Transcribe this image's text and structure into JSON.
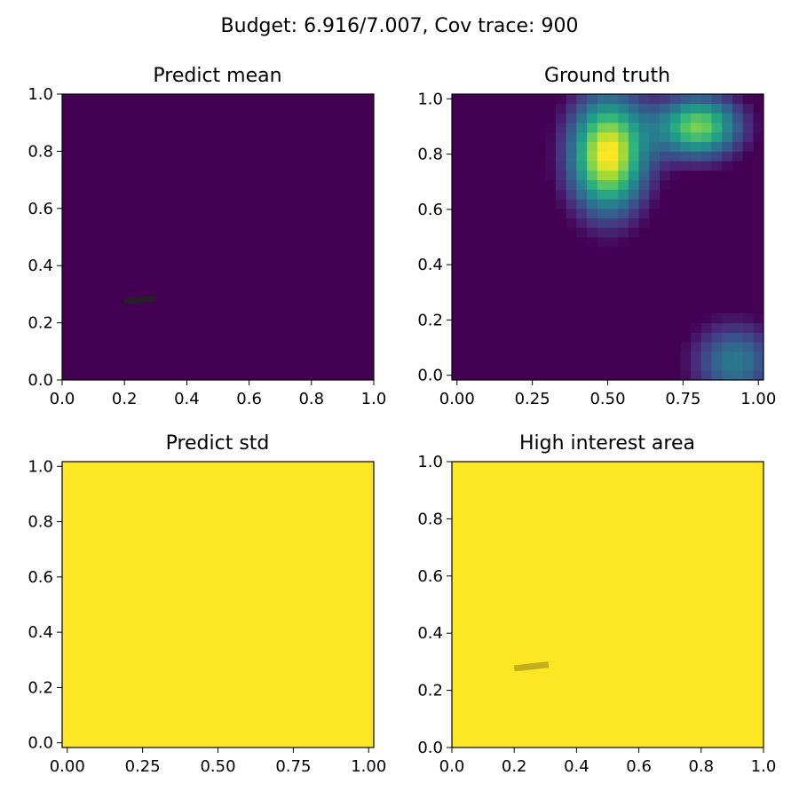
{
  "figure": {
    "suptitle": "Budget: 6.916/7.007,  Cov trace: 900"
  },
  "panels": [
    {
      "title": "Predict mean",
      "fill": "#440154",
      "xticks": [
        "0.0",
        "0.2",
        "0.4",
        "0.6",
        "0.8",
        "1.0"
      ],
      "yticks": [
        "0.0",
        "0.2",
        "0.4",
        "0.6",
        "0.8",
        "1.0"
      ]
    },
    {
      "title": "Ground truth",
      "fill": "#440154",
      "xticks": [
        "0.00",
        "0.25",
        "0.50",
        "0.75",
        "1.00"
      ],
      "yticks": [
        "0.0",
        "0.2",
        "0.4",
        "0.6",
        "0.8",
        "1.0"
      ]
    },
    {
      "title": "Predict std",
      "fill": "#fde725",
      "xticks": [
        "0.00",
        "0.25",
        "0.50",
        "0.75",
        "1.00"
      ],
      "yticks": [
        "0.0",
        "0.2",
        "0.4",
        "0.6",
        "0.8",
        "1.0"
      ]
    },
    {
      "title": "High interest area",
      "fill": "#fde725",
      "xticks": [
        "0.0",
        "0.2",
        "0.4",
        "0.6",
        "0.8",
        "1.0"
      ],
      "yticks": [
        "0.0",
        "0.2",
        "0.4",
        "0.6",
        "0.8",
        "1.0"
      ]
    }
  ],
  "chart_data": [
    {
      "type": "heatmap",
      "title": "Predict mean",
      "xlim": [
        0,
        1
      ],
      "ylim": [
        0,
        1
      ],
      "colormap": "viridis",
      "uniform_value": "min",
      "path": {
        "x": [
          0.2,
          0.3
        ],
        "y": [
          0.275,
          0.285
        ],
        "color": "#222222"
      }
    },
    {
      "type": "heatmap",
      "title": "Ground truth",
      "xlim": [
        -0.017,
        1.017
      ],
      "ylim": [
        -0.017,
        1.017
      ],
      "colormap": "viridis",
      "grid_size": 30,
      "blobs": [
        {
          "cx": 0.5,
          "cy": 0.8,
          "sx": 0.09,
          "sy": 0.15,
          "amp": 1.0
        },
        {
          "cx": 0.8,
          "cy": 0.9,
          "sx": 0.1,
          "sy": 0.08,
          "amp": 0.8
        },
        {
          "cx": 0.92,
          "cy": 0.05,
          "sx": 0.1,
          "sy": 0.1,
          "amp": 0.45
        }
      ]
    },
    {
      "type": "heatmap",
      "title": "Predict std",
      "xlim": [
        -0.017,
        1.017
      ],
      "ylim": [
        -0.017,
        1.017
      ],
      "colormap": "viridis",
      "uniform_value": "max"
    },
    {
      "type": "heatmap",
      "title": "High interest area",
      "xlim": [
        0,
        1
      ],
      "ylim": [
        0,
        1
      ],
      "colormap": "viridis",
      "uniform_value": "max",
      "path": {
        "x": [
          0.2,
          0.31
        ],
        "y": [
          0.277,
          0.29
        ],
        "color": "#b9a71c"
      }
    }
  ]
}
